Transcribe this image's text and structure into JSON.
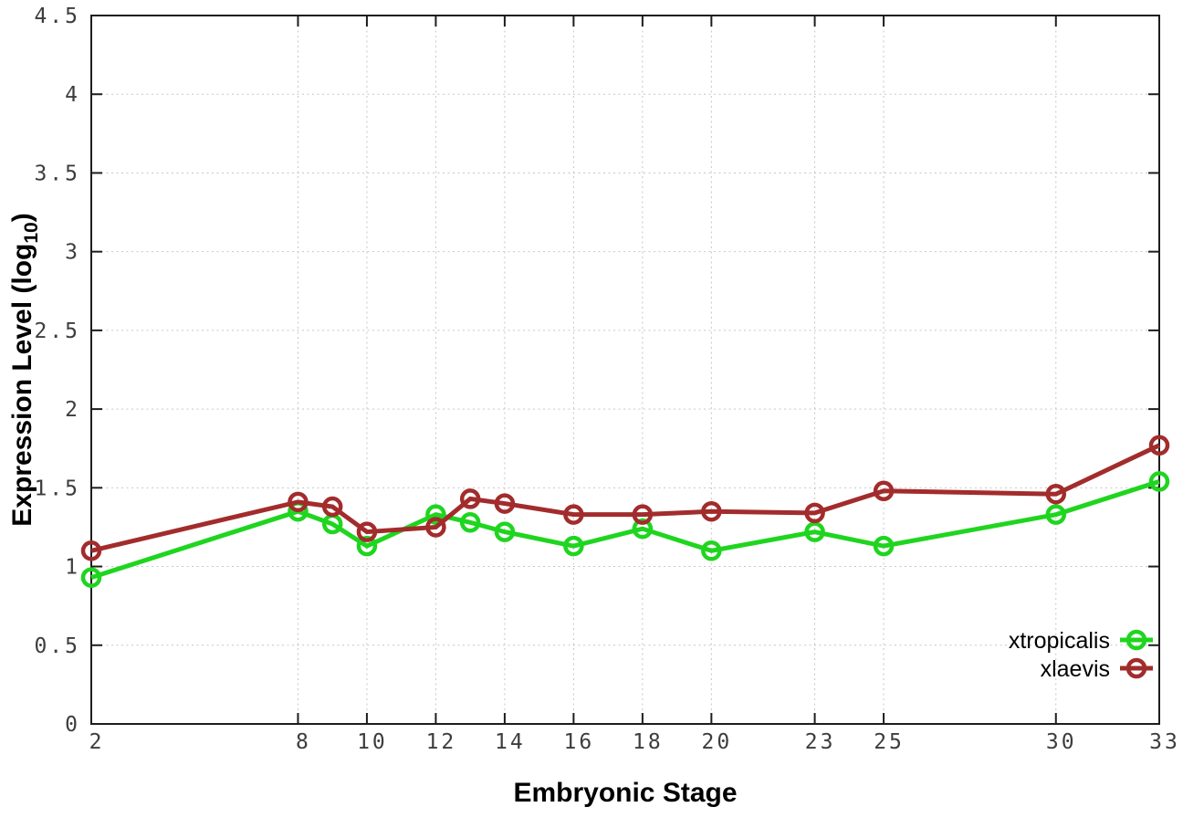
{
  "chart_data": {
    "type": "line",
    "title": "",
    "xlabel": "Embryonic Stage",
    "ylabel": "Expression Level (log10)",
    "ylabel_parts": {
      "main": "Expression Level (log",
      "sub": "10",
      "end": ")"
    },
    "xlim": [
      2,
      33
    ],
    "ylim": [
      0,
      4.5
    ],
    "xticks": [
      2,
      8,
      10,
      12,
      14,
      16,
      18,
      20,
      23,
      25,
      30,
      33
    ],
    "yticks": [
      0,
      0.5,
      1,
      1.5,
      2,
      2.5,
      3,
      3.5,
      4,
      4.5
    ],
    "grid": true,
    "grid_style": "dotted",
    "legend_position": "inside-bottom-right",
    "x": [
      2,
      8,
      9,
      10,
      12,
      13,
      14,
      16,
      18,
      20,
      23,
      25,
      30,
      33
    ],
    "series": [
      {
        "name": "xtropicalis",
        "color": "#1fd51f",
        "marker": "open-circle",
        "values": [
          0.93,
          1.35,
          1.27,
          1.13,
          1.33,
          1.28,
          1.22,
          1.13,
          1.24,
          1.1,
          1.22,
          1.13,
          1.33,
          1.54
        ]
      },
      {
        "name": "xlaevis",
        "color": "#a22c2c",
        "marker": "open-circle",
        "values": [
          1.1,
          1.41,
          1.38,
          1.22,
          1.25,
          1.43,
          1.4,
          1.33,
          1.33,
          1.35,
          1.34,
          1.48,
          1.46,
          1.77
        ]
      }
    ],
    "axis_color": "#1d1d1d",
    "grid_color": "#c6c6c6",
    "tick_label_color": "#3d3d3d"
  }
}
